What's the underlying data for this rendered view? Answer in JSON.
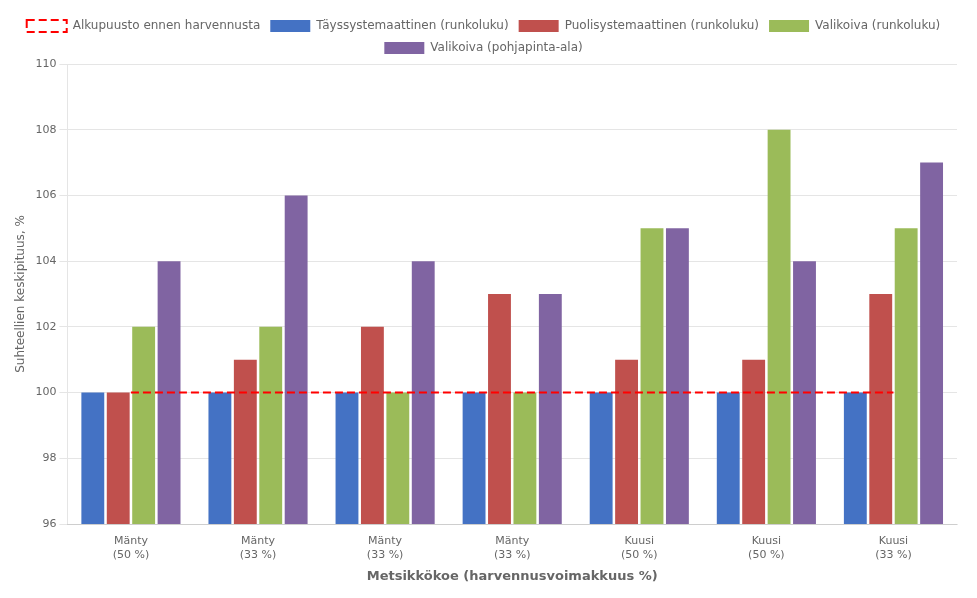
{
  "chart_data": {
    "type": "bar",
    "xlabel": "Metsikkökoe (harvennusvoimakkuus %)",
    "ylabel": "Suhteellien keskipituus, %",
    "categories": [
      "Mänty\n(50 %)",
      "Mänty\n(33 %)",
      "Mänty\n(33 %)",
      "Mänty\n(33 %)",
      "Kuusi\n(50 %)",
      "Kuusi\n(50 %)",
      "Kuusi\n(33 %)"
    ],
    "series": [
      {
        "name": "Täyssystemaattinen (runkoluku)",
        "color": "#4472C4",
        "values": [
          100,
          100,
          100,
          100,
          100,
          100,
          100
        ]
      },
      {
        "name": "Puolisystemaattinen (runkoluku)",
        "color": "#C0504D",
        "values": [
          100,
          101,
          102,
          103,
          101,
          101,
          103
        ]
      },
      {
        "name": "Valikoiva (runkoluku)",
        "color": "#9BBB59",
        "values": [
          102,
          102,
          100,
          100,
          105,
          108,
          105
        ]
      },
      {
        "name": "Valikoiva (pohjapinta-ala)",
        "color": "#8064A2",
        "values": [
          104,
          106,
          104,
          103,
          105,
          104,
          107
        ]
      },
      {
        "name": "Alkupuusto ennen harvennusta",
        "type": "line",
        "line_style": "dashed",
        "color": "#FF0000",
        "values": [
          100,
          100,
          100,
          100,
          100,
          100,
          100
        ]
      }
    ],
    "ylim": [
      96,
      110
    ],
    "yticks": [
      96,
      98,
      100,
      102,
      104,
      106,
      108,
      110
    ],
    "grid": true,
    "legend": "top"
  }
}
